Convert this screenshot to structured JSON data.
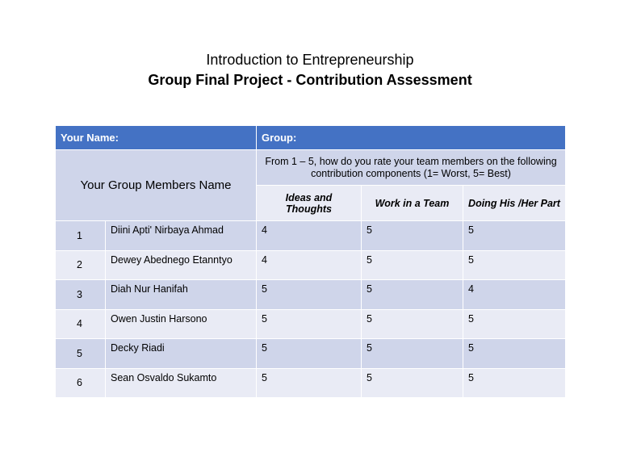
{
  "header": {
    "title": "Introduction to Entrepreneurship",
    "subtitle": "Group Final Project  - Contribution Assessment"
  },
  "table": {
    "your_name_label": "Your Name:",
    "group_label": "Group:",
    "members_header": "Your Group Members Name",
    "rating_prompt": "From 1 – 5, how do you rate  your team members on the following contribution components (1= Worst, 5= Best)",
    "columns": [
      "Ideas and Thoughts",
      "Work in a Team",
      "Doing His /Her Part"
    ],
    "rows": [
      [
        1,
        "Diini Apti' Nirbaya Ahmad",
        4,
        5,
        5
      ],
      [
        2,
        "Dewey Abednego Etanntyo",
        4,
        5,
        5
      ],
      [
        3,
        "Diah Nur Hanifah",
        5,
        5,
        4
      ],
      [
        4,
        "Owen Justin Harsono",
        5,
        5,
        5
      ],
      [
        5,
        "Decky Riadi",
        5,
        5,
        5
      ],
      [
        6,
        "Sean Osvaldo Sukamto",
        5,
        5,
        5
      ]
    ]
  }
}
